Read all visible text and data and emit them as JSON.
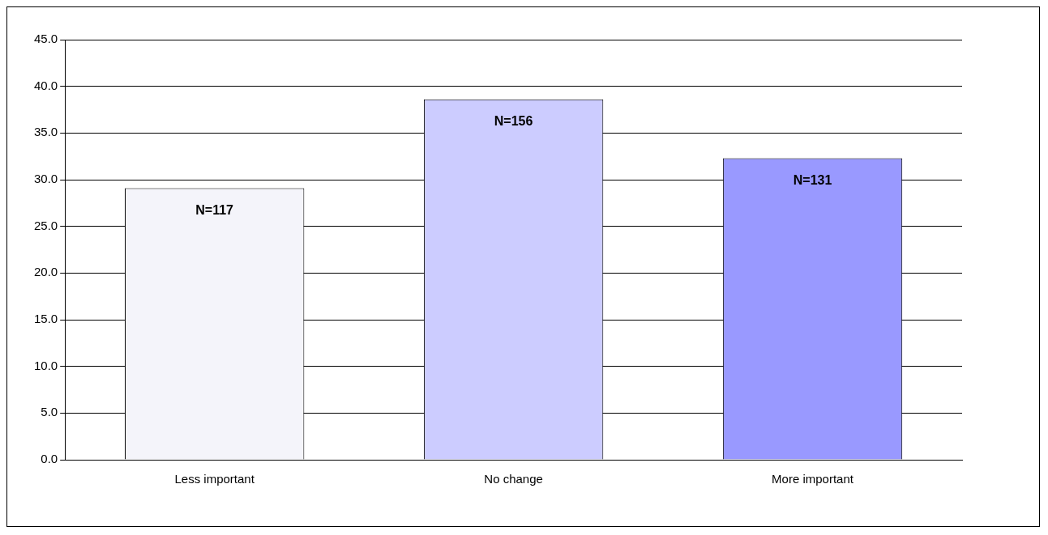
{
  "chart_data": {
    "type": "bar",
    "categories": [
      "Less important",
      "No change",
      "More important"
    ],
    "values": [
      29.1,
      38.6,
      32.3
    ],
    "colors": [
      "#f4f4fa",
      "#ccccff",
      "#9999ff"
    ],
    "ylim": [
      0,
      45
    ],
    "yticks": [
      {
        "value": 0,
        "label": "0.0"
      },
      {
        "value": 5,
        "label": "5.0"
      },
      {
        "value": 10,
        "label": "10.0"
      },
      {
        "value": 15,
        "label": "15.0"
      },
      {
        "value": 20,
        "label": "20.0"
      },
      {
        "value": 25,
        "label": "25.0"
      },
      {
        "value": 30,
        "label": "30.0"
      },
      {
        "value": 35,
        "label": "35.0"
      },
      {
        "value": 40,
        "label": "40.0"
      },
      {
        "value": 45,
        "label": "45.0"
      }
    ],
    "grid": "y",
    "legend": false,
    "annotations": [
      {
        "text": "N=117",
        "x": "Less important",
        "y": 29.1
      },
      {
        "text": "N=156",
        "x": "No change",
        "y": 38.6
      },
      {
        "text": "N=131",
        "x": "More important",
        "y": 32.3
      }
    ]
  }
}
